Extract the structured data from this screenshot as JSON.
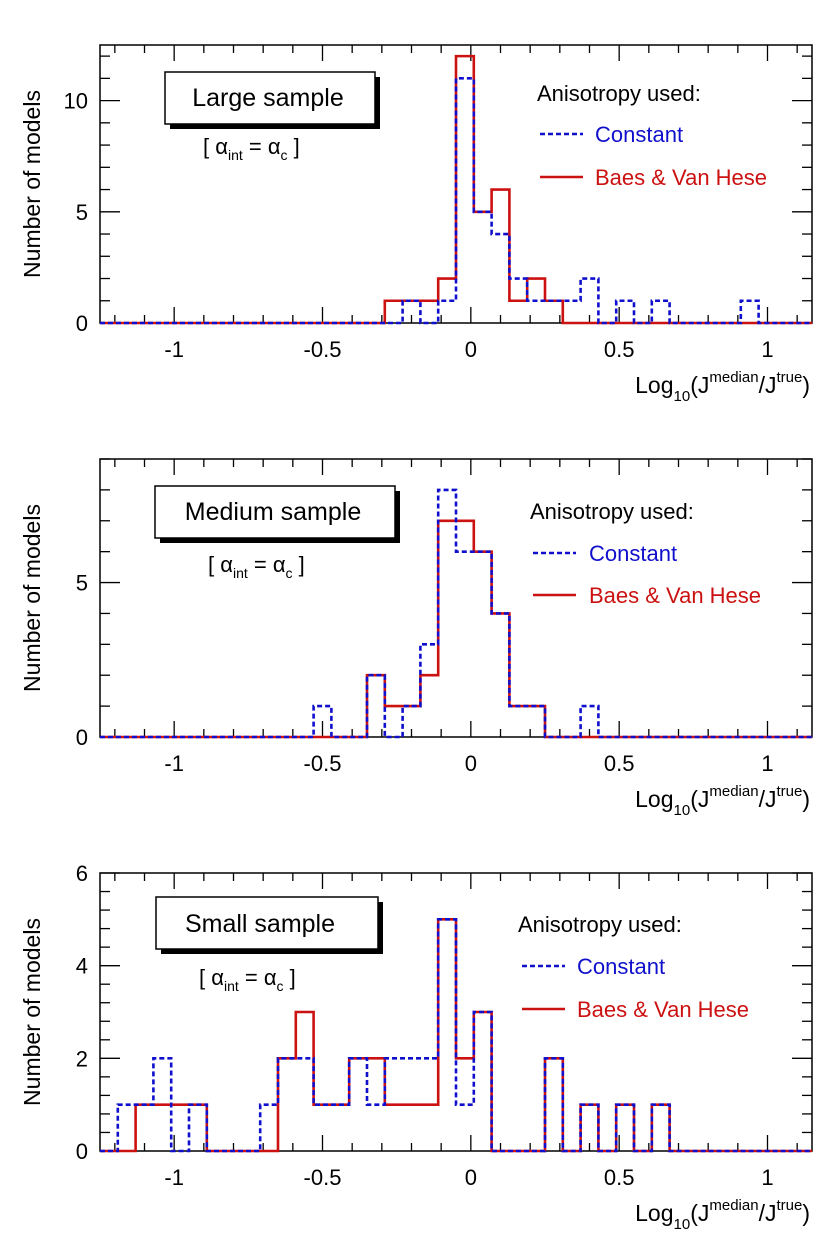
{
  "figure": {
    "colors": {
      "constant": "#1010cc",
      "baes": "#cc1111",
      "axis": "#000000"
    }
  },
  "chart_data": [
    {
      "type": "histogram",
      "title": "Large sample",
      "subtitle": {
        "open": "[ ",
        "alpha": "α",
        "sub_int": "int",
        "eq": " = ",
        "sub_c": "c",
        "close": " ]"
      },
      "ylabel": "Number of models",
      "xlabel": {
        "base": "Log",
        "sub": "10",
        "j1": "(J",
        "sup1": "median",
        "slash": "/J",
        "sup2": "true",
        "close": ")"
      },
      "xlim": [
        -1.25,
        1.15
      ],
      "ylim": [
        0,
        12.5
      ],
      "x_ticks": [
        -1,
        -0.5,
        0,
        0.5,
        1
      ],
      "x_tick_labels": [
        "-1",
        "-0.5",
        "0",
        "0.5",
        "1"
      ],
      "y_ticks": [
        0,
        5,
        10
      ],
      "y_tick_labels": [
        "0",
        "5",
        "10"
      ],
      "legend_header": "Anisotropy used:",
      "legend_position": "top-right",
      "bin_edges": [
        -1.25,
        -1.19,
        -1.13,
        -1.07,
        -1.01,
        -0.95,
        -0.89,
        -0.83,
        -0.77,
        -0.71,
        -0.65,
        -0.59,
        -0.53,
        -0.47,
        -0.41,
        -0.35,
        -0.29,
        -0.23,
        -0.17,
        -0.11,
        -0.05,
        0.01,
        0.07,
        0.13,
        0.19,
        0.25,
        0.31,
        0.37,
        0.43,
        0.49,
        0.55,
        0.61,
        0.67,
        0.73,
        0.79,
        0.85,
        0.91,
        0.97,
        1.03,
        1.09,
        1.15
      ],
      "series": [
        {
          "name": "Constant",
          "style": "dashed",
          "values": [
            0,
            0,
            0,
            0,
            0,
            0,
            0,
            0,
            0,
            0,
            0,
            0,
            0,
            0,
            0,
            0,
            0,
            1,
            0,
            1,
            11,
            5,
            4,
            2,
            1,
            1,
            1,
            2,
            0,
            1,
            0,
            1,
            0,
            0,
            0,
            0,
            1,
            0,
            0,
            0
          ]
        },
        {
          "name": "Baes & Van Hese",
          "style": "solid",
          "values": [
            0,
            0,
            0,
            0,
            0,
            0,
            0,
            0,
            0,
            0,
            0,
            0,
            0,
            0,
            0,
            0,
            1,
            1,
            1,
            2,
            12,
            5,
            6,
            1,
            2,
            1,
            0,
            0,
            0,
            0,
            0,
            0,
            0,
            0,
            0,
            0,
            0,
            0,
            0,
            0
          ]
        }
      ]
    },
    {
      "type": "histogram",
      "title": "Medium sample",
      "subtitle": {
        "open": "[ ",
        "alpha": "α",
        "sub_int": "int",
        "eq": " = ",
        "sub_c": "c",
        "close": " ]"
      },
      "ylabel": "Number of models",
      "xlabel": {
        "base": "Log",
        "sub": "10",
        "j1": "(J",
        "sup1": "median",
        "slash": "/J",
        "sup2": "true",
        "close": ")"
      },
      "xlim": [
        -1.25,
        1.15
      ],
      "ylim": [
        0,
        9
      ],
      "x_ticks": [
        -1,
        -0.5,
        0,
        0.5,
        1
      ],
      "x_tick_labels": [
        "-1",
        "-0.5",
        "0",
        "0.5",
        "1"
      ],
      "y_ticks": [
        0,
        5
      ],
      "y_tick_labels": [
        "0",
        "5"
      ],
      "legend_header": "Anisotropy used:",
      "legend_position": "top-right",
      "bin_edges": [
        -1.25,
        -1.19,
        -1.13,
        -1.07,
        -1.01,
        -0.95,
        -0.89,
        -0.83,
        -0.77,
        -0.71,
        -0.65,
        -0.59,
        -0.53,
        -0.47,
        -0.41,
        -0.35,
        -0.29,
        -0.23,
        -0.17,
        -0.11,
        -0.05,
        0.01,
        0.07,
        0.13,
        0.19,
        0.25,
        0.31,
        0.37,
        0.43,
        0.49,
        0.55,
        0.61,
        0.67,
        0.73,
        0.79,
        0.85,
        0.91,
        0.97,
        1.03,
        1.09,
        1.15
      ],
      "series": [
        {
          "name": "Constant",
          "style": "dashed",
          "values": [
            0,
            0,
            0,
            0,
            0,
            0,
            0,
            0,
            0,
            0,
            0,
            0,
            1,
            0,
            0,
            2,
            0,
            1,
            3,
            8,
            6,
            6,
            4,
            1,
            1,
            0,
            0,
            1,
            0,
            0,
            0,
            0,
            0,
            0,
            0,
            0,
            0,
            0,
            0,
            0
          ]
        },
        {
          "name": "Baes & Van Hese",
          "style": "solid",
          "values": [
            0,
            0,
            0,
            0,
            0,
            0,
            0,
            0,
            0,
            0,
            0,
            0,
            0,
            0,
            0,
            2,
            1,
            1,
            2,
            7,
            7,
            6,
            4,
            1,
            1,
            0,
            0,
            0,
            0,
            0,
            0,
            0,
            0,
            0,
            0,
            0,
            0,
            0,
            0,
            0
          ]
        }
      ]
    },
    {
      "type": "histogram",
      "title": "Small sample",
      "subtitle": {
        "open": "[ ",
        "alpha": "α",
        "sub_int": "int",
        "eq": " = ",
        "sub_c": "c",
        "close": " ]"
      },
      "ylabel": "Number of models",
      "xlabel": {
        "base": "Log",
        "sub": "10",
        "j1": "(J",
        "sup1": "median",
        "slash": "/J",
        "sup2": "true",
        "close": ")"
      },
      "xlim": [
        -1.25,
        1.15
      ],
      "ylim": [
        0,
        6
      ],
      "x_ticks": [
        -1,
        -0.5,
        0,
        0.5,
        1
      ],
      "x_tick_labels": [
        "-1",
        "-0.5",
        "0",
        "0.5",
        "1"
      ],
      "y_ticks": [
        0,
        2,
        4,
        6
      ],
      "y_tick_labels": [
        "0",
        "2",
        "4",
        "6"
      ],
      "legend_header": "Anisotropy used:",
      "legend_position": "top-right",
      "bin_edges": [
        -1.25,
        -1.19,
        -1.13,
        -1.07,
        -1.01,
        -0.95,
        -0.89,
        -0.83,
        -0.77,
        -0.71,
        -0.65,
        -0.59,
        -0.53,
        -0.47,
        -0.41,
        -0.35,
        -0.29,
        -0.23,
        -0.17,
        -0.11,
        -0.05,
        0.01,
        0.07,
        0.13,
        0.19,
        0.25,
        0.31,
        0.37,
        0.43,
        0.49,
        0.55,
        0.61,
        0.67,
        0.73,
        0.79,
        0.85,
        0.91,
        0.97,
        1.03,
        1.09,
        1.15
      ],
      "series": [
        {
          "name": "Constant",
          "style": "dashed",
          "values": [
            0,
            1,
            1,
            2,
            0,
            1,
            0,
            0,
            0,
            1,
            2,
            2,
            1,
            1,
            2,
            1,
            2,
            2,
            2,
            5,
            1,
            3,
            0,
            0,
            0,
            2,
            0,
            1,
            0,
            1,
            0,
            1,
            0,
            0,
            0,
            0,
            0,
            0,
            0,
            0
          ]
        },
        {
          "name": "Baes & Van Hese",
          "style": "solid",
          "values": [
            0,
            0,
            1,
            1,
            1,
            1,
            0,
            0,
            0,
            0,
            2,
            3,
            1,
            1,
            2,
            2,
            1,
            1,
            1,
            5,
            2,
            3,
            0,
            0,
            0,
            2,
            0,
            1,
            0,
            1,
            0,
            1,
            0,
            0,
            0,
            0,
            0,
            0,
            0,
            0
          ]
        }
      ]
    }
  ]
}
